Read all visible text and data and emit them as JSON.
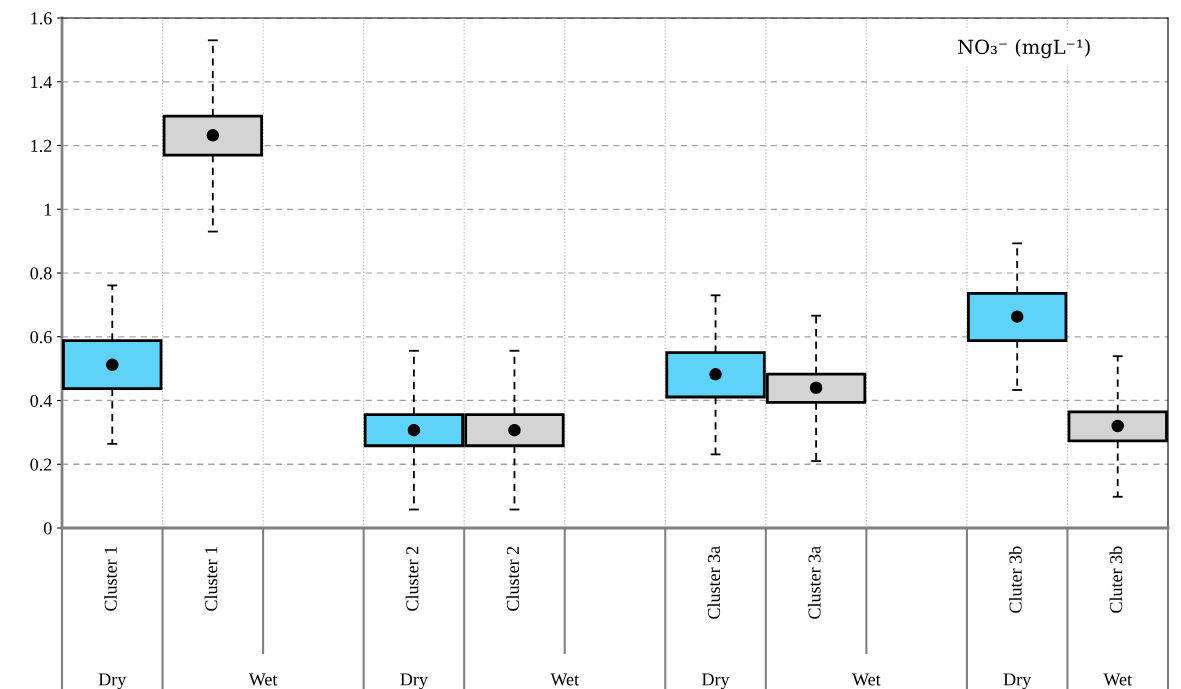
{
  "chart_data": {
    "type": "box",
    "title": "NO₃⁻ (mgL⁻¹)",
    "categories": [
      "Cluster 1",
      "Cluster 1",
      null,
      "Cluster 2",
      "Cluster 2",
      null,
      "Cluster 3a",
      "Cluster 3a",
      null,
      "Cluter 3b",
      "Cluter 3b"
    ],
    "boxes": [
      {
        "low": 0.264,
        "q1": 0.437,
        "median": 0.512,
        "q3": 0.588,
        "high": 0.761
      },
      {
        "low": 0.93,
        "q1": 1.17,
        "median": 1.232,
        "q3": 1.292,
        "high": 1.53
      },
      null,
      {
        "low": 0.058,
        "q1": 0.258,
        "median": 0.307,
        "q3": 0.356,
        "high": 0.556
      },
      {
        "low": 0.058,
        "q1": 0.258,
        "median": 0.307,
        "q3": 0.356,
        "high": 0.556
      },
      null,
      {
        "low": 0.231,
        "q1": 0.411,
        "median": 0.482,
        "q3": 0.55,
        "high": 0.73
      },
      {
        "low": 0.21,
        "q1": 0.394,
        "median": 0.44,
        "q3": 0.483,
        "high": 0.666
      },
      null,
      {
        "low": 0.433,
        "q1": 0.588,
        "median": 0.663,
        "q3": 0.736,
        "high": 0.893
      },
      {
        "low": 0.098,
        "q1": 0.273,
        "median": 0.32,
        "q3": 0.364,
        "high": 0.539
      }
    ],
    "colors": [
      "#5fd3f7",
      "#d4d4d4",
      null,
      "#5fd3f7",
      "#d4d4d4",
      null,
      "#5fd3f7",
      "#d4d4d4",
      null,
      "#5fd3f7",
      "#d4d4d4"
    ],
    "ylim": [
      0,
      1.6
    ],
    "yticks": [
      0,
      0.2,
      0.4,
      0.6,
      0.8,
      1,
      1.2,
      1.4,
      1.6
    ],
    "grid": true,
    "marker": "circle",
    "annotations": [
      "Dry",
      "Wet",
      "Dry",
      "Wet",
      "Dry",
      "Wet",
      "Dry",
      "Wet"
    ]
  }
}
